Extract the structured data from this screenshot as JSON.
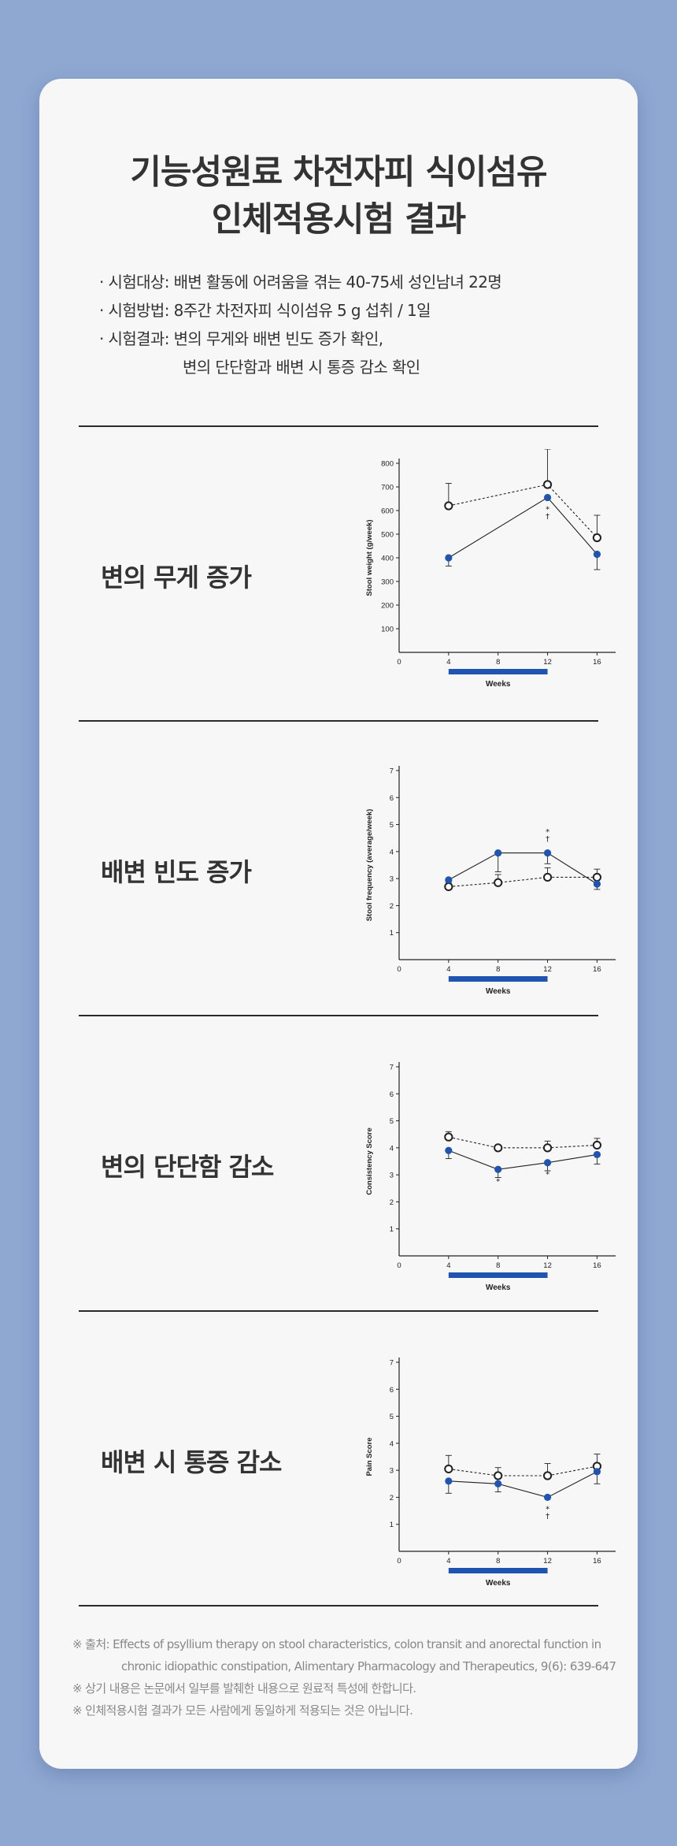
{
  "title": {
    "line1": "기능성원료 차전자피 식이섬유",
    "line2": "인체적용시험 결과"
  },
  "info": [
    "· 시험대상: 배변 활동에 어려움을 겪는 40-75세 성인남녀 22명",
    "· 시험방법: 8주간 차전자피 식이섬유 5 g 섭취 / 1일",
    "· 시험결과: 변의 무게와 배변 빈도 증가 확인,",
    "변의 단단함과 배변 시 통증 감소 확인"
  ],
  "sections": [
    {
      "label": "변의 무게 증가"
    },
    {
      "label": "배변 빈도 증가"
    },
    {
      "label": "변의 단단함 감소"
    },
    {
      "label": "배변 시 통증 감소"
    }
  ],
  "colors": {
    "filled": "#1f55b0",
    "bar": "#1f55b0",
    "axis": "#222222"
  },
  "chart_data": [
    {
      "type": "line",
      "ylabel": "Stool weight (g/week)",
      "xlabel": "Weeks",
      "x": [
        4,
        8,
        12,
        16
      ],
      "xticks": [
        "0",
        "4",
        "8",
        "12",
        "16"
      ],
      "ylim": [
        0,
        800
      ],
      "yticks": [
        "100",
        "200",
        "300",
        "400",
        "500",
        "600",
        "700",
        "800"
      ],
      "treatment_bar": [
        4,
        12
      ],
      "series": [
        {
          "marker": "open",
          "line": "dashed",
          "points": [
            [
              4,
              620
            ],
            [
              12,
              710
            ],
            [
              16,
              485
            ]
          ],
          "err": [
            95,
            150,
            95
          ]
        },
        {
          "marker": "filled",
          "line": "solid",
          "points": [
            [
              4,
              400
            ],
            [
              12,
              655
            ],
            [
              16,
              415
            ]
          ],
          "err": [
            35,
            0,
            65
          ]
        }
      ],
      "annotations": [
        {
          "x": 12,
          "text": "*"
        },
        {
          "x": 12,
          "text": "†"
        }
      ]
    },
    {
      "type": "line",
      "ylabel": "Stool frequency (average/week)",
      "xlabel": "Weeks",
      "x": [
        4,
        8,
        12,
        16
      ],
      "xticks": [
        "0",
        "4",
        "8",
        "12",
        "16"
      ],
      "ylim": [
        0,
        7
      ],
      "yticks": [
        "1",
        "2",
        "3",
        "4",
        "5",
        "6",
        "7"
      ],
      "treatment_bar": [
        4,
        12
      ],
      "series": [
        {
          "marker": "open",
          "line": "dashed",
          "points": [
            [
              4,
              2.7
            ],
            [
              8,
              2.85
            ],
            [
              12,
              3.05
            ],
            [
              16,
              3.05
            ]
          ],
          "err": [
            0.15,
            0.3,
            0.35,
            0.3
          ]
        },
        {
          "marker": "filled",
          "line": "solid",
          "points": [
            [
              4,
              2.95
            ],
            [
              8,
              3.95
            ],
            [
              12,
              3.95
            ],
            [
              16,
              2.8
            ]
          ],
          "err": [
            0.3,
            0.7,
            0.4,
            0.2
          ]
        }
      ],
      "annotations": [
        {
          "x": 12,
          "text": "*"
        },
        {
          "x": 12,
          "text": "†"
        }
      ]
    },
    {
      "type": "line",
      "ylabel": "Consistency Score",
      "xlabel": "Weeks",
      "x": [
        4,
        8,
        12,
        16
      ],
      "xticks": [
        "0",
        "4",
        "8",
        "12",
        "16"
      ],
      "ylim": [
        0,
        7
      ],
      "yticks": [
        "1",
        "2",
        "3",
        "4",
        "5",
        "6",
        "7"
      ],
      "treatment_bar": [
        4,
        12
      ],
      "series": [
        {
          "marker": "open",
          "line": "dashed",
          "points": [
            [
              4,
              4.4
            ],
            [
              8,
              4.0
            ],
            [
              12,
              4.0
            ],
            [
              16,
              4.1
            ]
          ],
          "err": [
            0.2,
            0.1,
            0.25,
            0.25
          ]
        },
        {
          "marker": "filled",
          "line": "solid",
          "points": [
            [
              4,
              3.9
            ],
            [
              8,
              3.2
            ],
            [
              12,
              3.45
            ],
            [
              16,
              3.75
            ]
          ],
          "err": [
            0.3,
            0.3,
            0.3,
            0.35
          ]
        }
      ],
      "annotations": [
        {
          "x": 8,
          "text": "*"
        },
        {
          "x": 12,
          "text": "*"
        }
      ]
    },
    {
      "type": "line",
      "ylabel": "Pain Score",
      "xlabel": "Weeks",
      "x": [
        4,
        8,
        12,
        16
      ],
      "xticks": [
        "0",
        "4",
        "8",
        "12",
        "16"
      ],
      "ylim": [
        0,
        7
      ],
      "yticks": [
        "1",
        "2",
        "3",
        "4",
        "5",
        "6",
        "7"
      ],
      "treatment_bar": [
        4,
        12
      ],
      "series": [
        {
          "marker": "open",
          "line": "dashed",
          "points": [
            [
              4,
              3.05
            ],
            [
              8,
              2.8
            ],
            [
              12,
              2.8
            ],
            [
              16,
              3.15
            ]
          ],
          "err": [
            0.5,
            0.3,
            0.45,
            0.45
          ]
        },
        {
          "marker": "filled",
          "line": "solid",
          "points": [
            [
              4,
              2.6
            ],
            [
              8,
              2.5
            ],
            [
              12,
              2.0
            ],
            [
              16,
              2.95
            ]
          ],
          "err": [
            0.45,
            0.3,
            0,
            0.45
          ]
        }
      ],
      "annotations": [
        {
          "x": 12,
          "text": "*"
        },
        {
          "x": 12,
          "text": "†"
        }
      ]
    }
  ],
  "notes": [
    "※ 출처: Effects of psyllium therapy on stool characteristics, colon transit and anorectal function in",
    "chronic idiopathic constipation, Alimentary Pharmacology and Therapeutics, 9(6): 639-647",
    "※ 상기 내용은 논문에서 일부를 발췌한 내용으로 원료적 특성에 한합니다.",
    "※ 인체적용시험 결과가 모든 사람에게 동일하게 적용되는 것은 아닙니다."
  ]
}
